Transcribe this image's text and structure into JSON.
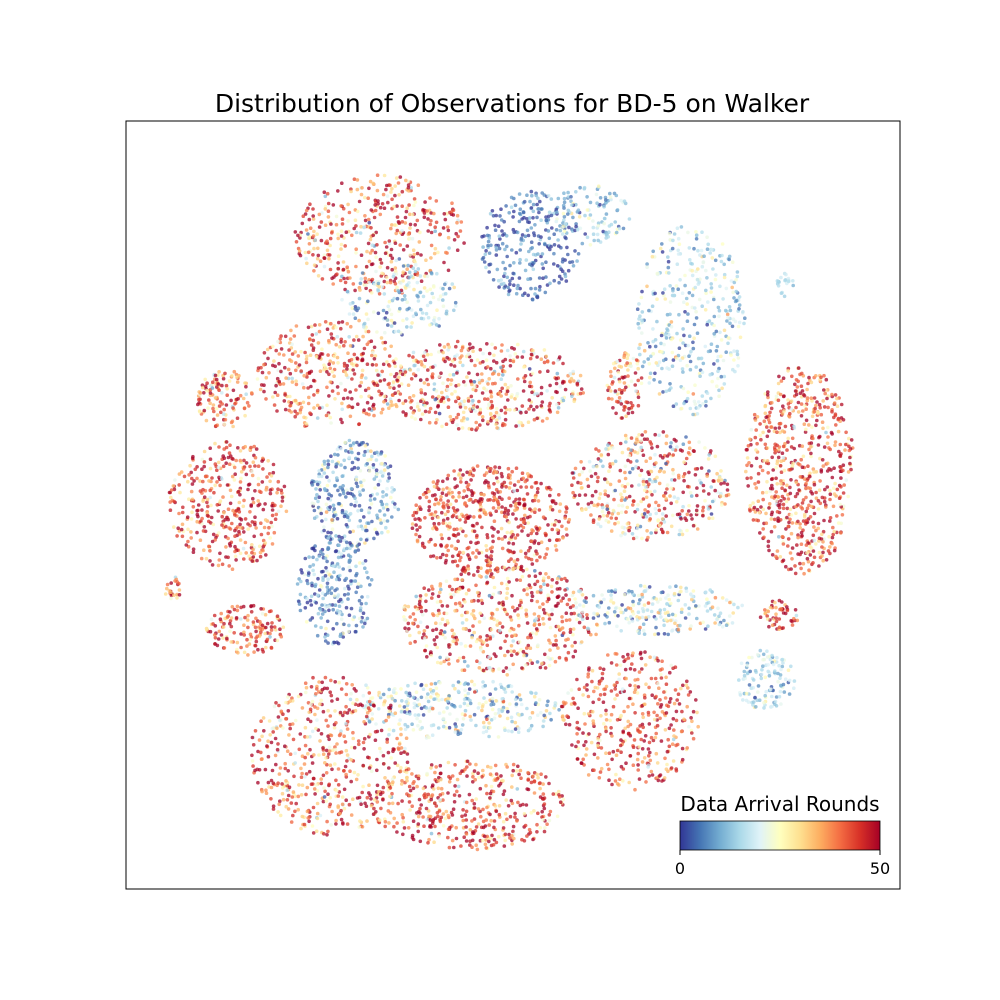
{
  "chart_data": {
    "type": "scatter",
    "title": "Distribution of Observations for BD-5 on Walker",
    "xlabel": "",
    "ylabel": "",
    "axis_ticks": "none",
    "grid": false,
    "colorbar": {
      "label": "Data Arrival Rounds",
      "min": 0,
      "max": 50,
      "ticks": [
        "0",
        "50"
      ],
      "colormap": "RdYlBu_r",
      "placement": "bottom-right"
    },
    "colors": {
      "low": "#313695",
      "mid": "#ffffbf",
      "high": "#a50026"
    }
  }
}
